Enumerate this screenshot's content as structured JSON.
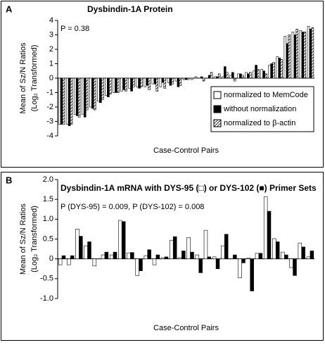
{
  "chart_data": [
    {
      "type": "bar",
      "panel": "A",
      "title": "Dysbindin-1A Protein",
      "annotation": "P = 0.38",
      "y_label": [
        "Mean of Sz/N Ratios",
        "(Log₂ Transformed)"
      ],
      "x_label": "Case-Control Pairs",
      "categories": [
        null,
        null,
        null,
        null,
        null,
        null,
        null,
        null,
        null,
        null,
        null,
        null,
        null,
        null,
        null,
        null,
        null,
        null,
        null,
        null,
        null,
        null,
        null,
        null,
        null,
        null,
        null,
        null,
        null,
        null,
        null,
        null,
        null
      ],
      "series": [
        {
          "name": "normalized to MemCode",
          "color": "#ffffff",
          "hatch": false,
          "values": [
            -3.2,
            -3.2,
            -2.5,
            -2.5,
            -2.0,
            -1.6,
            -1.2,
            -1.0,
            -0.9,
            -0.7,
            -0.6,
            -0.6,
            -0.4,
            -0.6,
            -0.3,
            -0.2,
            -0.1,
            -0.1,
            0,
            0,
            0.1,
            0.1,
            0.2,
            0.3,
            0.4,
            0.5,
            0.6,
            0.9,
            1.5,
            2.9,
            3.2,
            3.3,
            3.6
          ]
        },
        {
          "name": "without normalization",
          "color": "#000000",
          "hatch": false,
          "values": [
            -3.2,
            -3.3,
            -2.6,
            -2.7,
            -2.1,
            -1.7,
            -1.3,
            -1.0,
            -0.8,
            -0.9,
            -0.7,
            -0.5,
            -0.4,
            -0.3,
            -0.5,
            -0.6,
            -0.1,
            0,
            0.1,
            0.2,
            0.1,
            0.8,
            0.4,
            0.3,
            0.3,
            0.9,
            0.5,
            1.0,
            1.4,
            2.4,
            3.0,
            3.2,
            3.4
          ]
        },
        {
          "name": "normalized to β-actin",
          "color": "#ffffff",
          "hatch": true,
          "values": [
            -3.2,
            -3.2,
            -2.7,
            -2.2,
            -2.2,
            -1.5,
            -1.1,
            -1.0,
            -0.9,
            -0.6,
            -0.6,
            -0.8,
            -0.9,
            -0.7,
            -0.4,
            -0.5,
            -0.1,
            0.1,
            -0.2,
            0.4,
            0.3,
            0.4,
            -0.2,
            0.2,
            0.4,
            0.6,
            0.3,
            1.1,
            1.3,
            3.0,
            3.4,
            3.2,
            3.5
          ]
        }
      ],
      "ylim": [
        -4,
        4
      ],
      "yticks": [
        -4,
        -3,
        -2,
        -1,
        0,
        1,
        2,
        3,
        4
      ],
      "grid": false,
      "legend": "lower right"
    },
    {
      "type": "bar",
      "panel": "B",
      "title": "Dysbindin-1A mRNA with DYS-95 (□) or DYS-102 (■) Primer Sets",
      "annotation": "P (DYS-95) = 0.009, P (DYS-102) = 0.008",
      "y_label": [
        "Mean of Sz/N Ratios",
        "(Log₂ Transformed)"
      ],
      "x_label": "Case-Control Pairs",
      "categories": [
        null,
        null,
        null,
        null,
        null,
        null,
        null,
        null,
        null,
        null,
        null,
        null,
        null,
        null,
        null,
        null,
        null,
        null,
        null,
        null,
        null,
        null,
        null,
        null,
        null,
        null,
        null,
        null,
        null,
        null
      ],
      "series": [
        {
          "color": "#ffffff",
          "values": [
            -0.15,
            -0.15,
            0.75,
            0.33,
            -0.18,
            0.1,
            0.1,
            0.97,
            0.15,
            -0.42,
            0.08,
            -0.15,
            0.03,
            0.47,
            0.03,
            0.54,
            0.1,
            0.72,
            0.05,
            0.33,
            0.0,
            -0.48,
            0.02,
            0.14,
            1.57,
            0.51,
            0.17,
            -0.22,
            0.4,
            0.05
          ]
        },
        {
          "color": "#000000",
          "values": [
            0.08,
            0.08,
            0.57,
            0.43,
            0.0,
            0.17,
            0.17,
            0.94,
            0.16,
            -0.3,
            0.23,
            0.1,
            0.05,
            0.56,
            0.2,
            0.17,
            -0.35,
            0.05,
            -0.25,
            0.62,
            0.1,
            -0.1,
            -0.81,
            0.14,
            1.2,
            0.43,
            0.1,
            -0.42,
            0.3,
            0.2
          ]
        }
      ],
      "ylim": [
        -1.0,
        2.0
      ],
      "yticks": [
        {
          "value": -1.0,
          "label": "-1.0"
        },
        -0.5,
        0,
        0.5,
        {
          "value": 1.0,
          "label": "1.0"
        },
        1.5,
        {
          "value": 2.0,
          "label": "2.0"
        }
      ],
      "grid": false
    }
  ]
}
